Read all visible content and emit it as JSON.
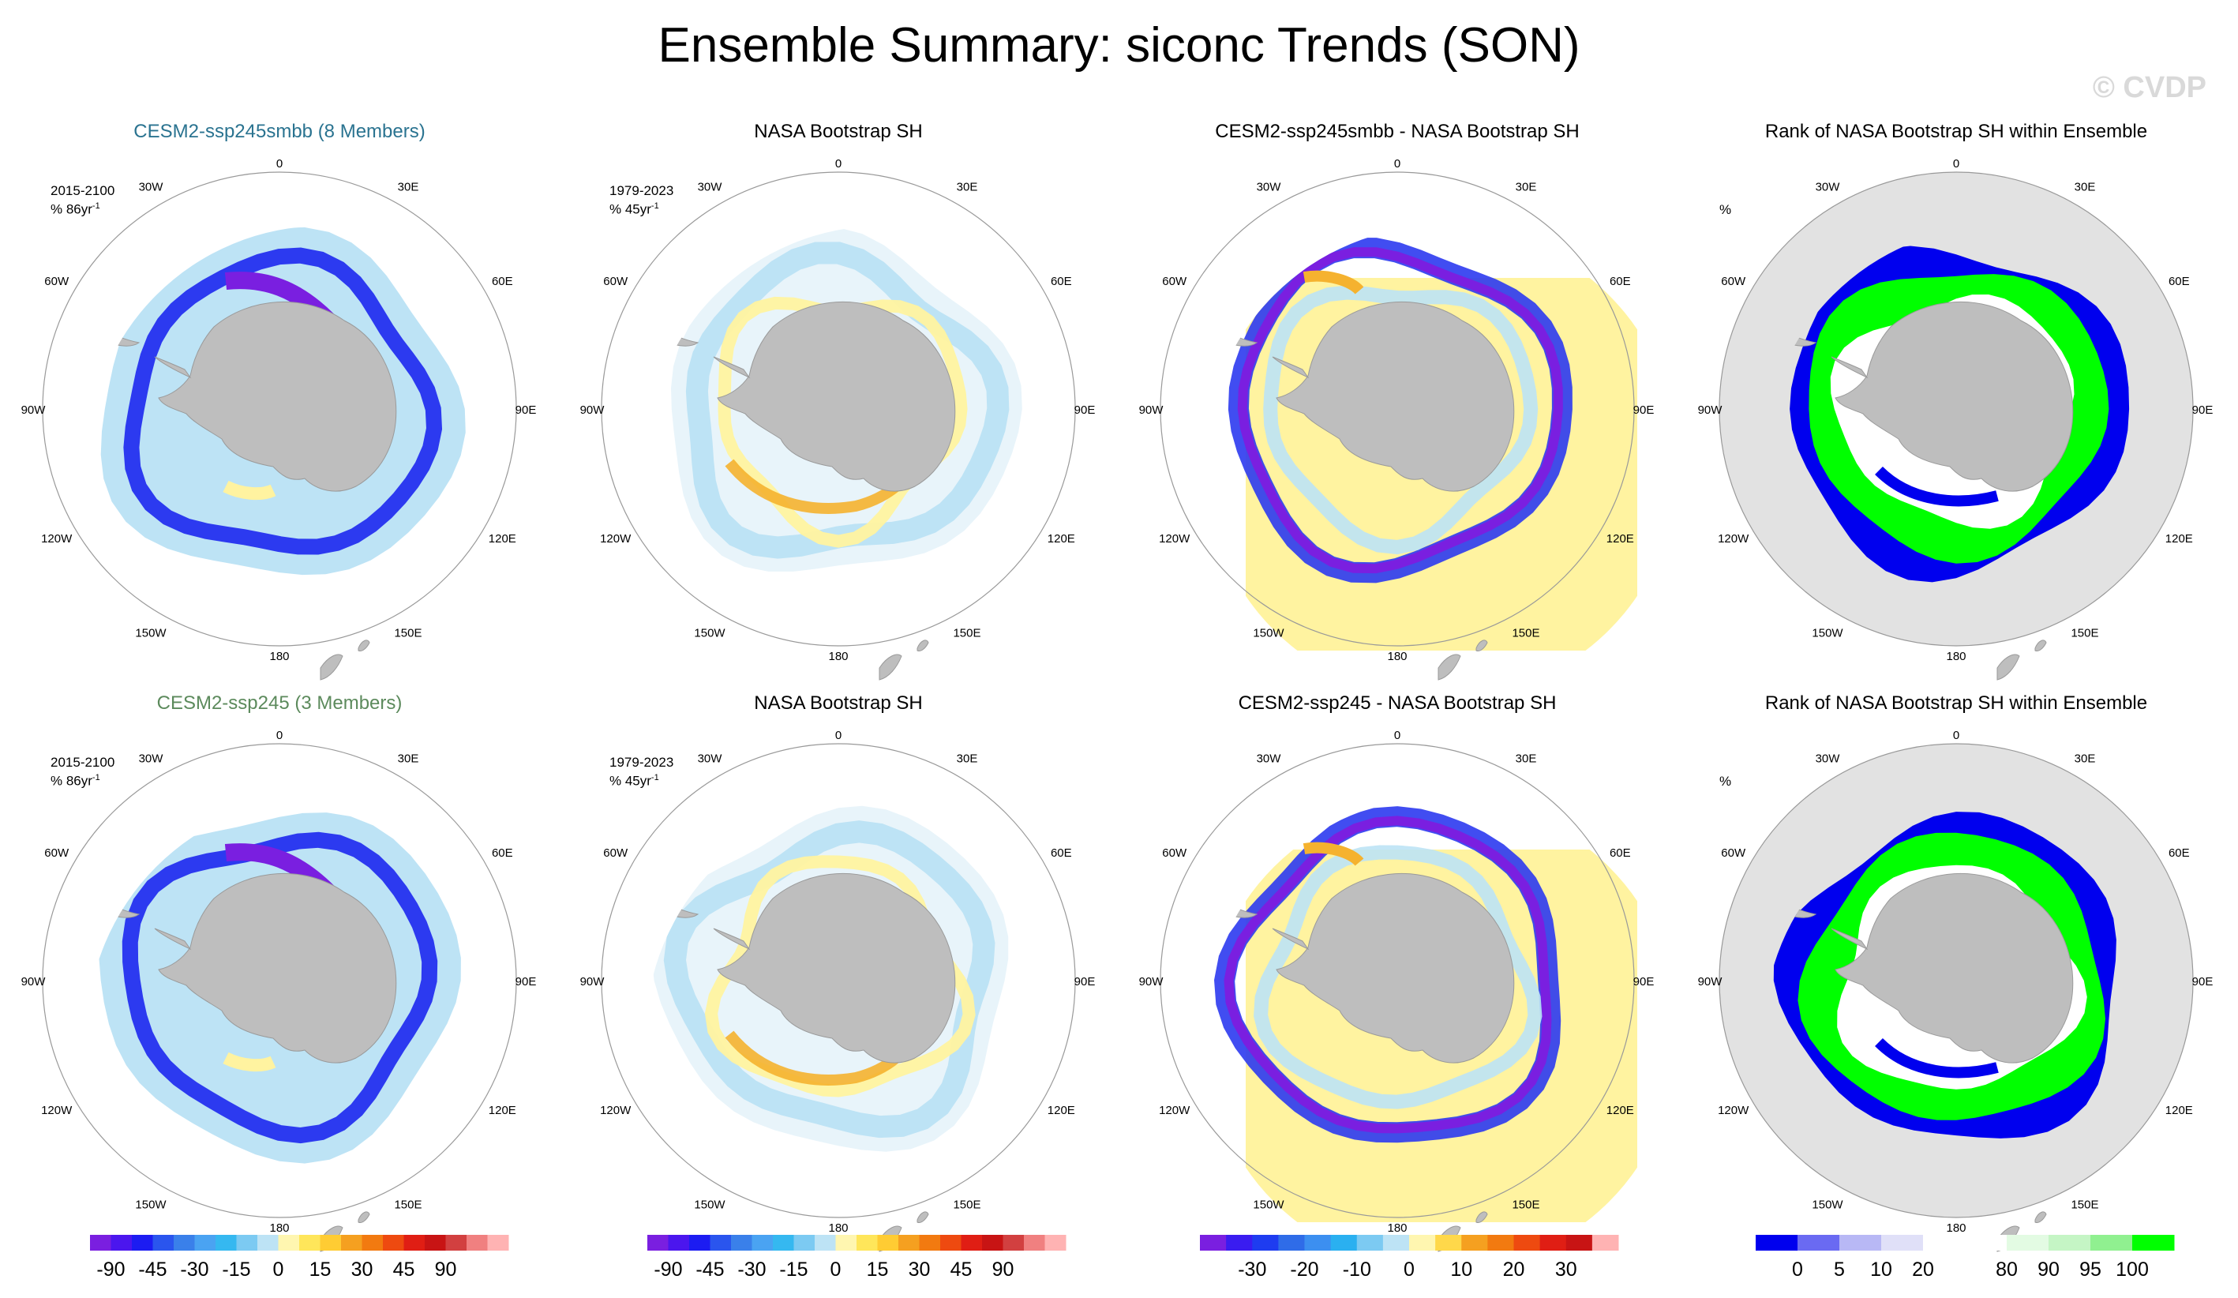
{
  "title": "Ensemble Summary: siconc Trends (SON)",
  "watermark": "© CVDP",
  "colors": {
    "model1_title": "#2a7390",
    "model2_title": "#5c8a5c",
    "land": "#bebebe",
    "ocean_rank": "#e2e2e2",
    "neg_strong": "#7a1fe0",
    "neg_mid": "#2c3af0",
    "neg_light": "#bde3f5",
    "pos_light": "#fff3a0",
    "pos_mid": "#f5b22f",
    "rank_low": "#0000ee",
    "rank_high": "#00ff00"
  },
  "map_labels": {
    "lon": [
      "0",
      "30E",
      "60E",
      "90E",
      "120E",
      "150E",
      "180",
      "150W",
      "120W",
      "90W",
      "60W",
      "30W"
    ]
  },
  "panels": [
    {
      "type": "trend",
      "title": "CESM2-ssp245smbb (8 Members)",
      "title_color": "model1",
      "period": "2015-2100",
      "units": "% 86yr",
      "units_sup": "-1",
      "variant": "model"
    },
    {
      "type": "trend",
      "title": "NASA Bootstrap SH",
      "title_color": "black",
      "period": "1979-2023",
      "units": "% 45yr",
      "units_sup": "-1",
      "variant": "obs"
    },
    {
      "type": "trend",
      "title": "CESM2-ssp245smbb - NASA Bootstrap SH",
      "title_color": "black",
      "period": "",
      "units": "",
      "units_sup": "",
      "variant": "diff"
    },
    {
      "type": "rank",
      "title": "Rank of NASA Bootstrap SH within Ensemble",
      "title_color": "black",
      "period": "",
      "units": "%",
      "units_sup": "",
      "variant": "rank"
    },
    {
      "type": "trend",
      "title": "CESM2-ssp245 (3 Members)",
      "title_color": "model2",
      "period": "2015-2100",
      "units": "% 86yr",
      "units_sup": "-1",
      "variant": "model"
    },
    {
      "type": "trend",
      "title": "NASA Bootstrap SH",
      "title_color": "black",
      "period": "1979-2023",
      "units": "% 45yr",
      "units_sup": "-1",
      "variant": "obs"
    },
    {
      "type": "trend",
      "title": "CESM2-ssp245 - NASA Bootstrap SH",
      "title_color": "black",
      "period": "",
      "units": "",
      "units_sup": "",
      "variant": "diff"
    },
    {
      "type": "rank",
      "title": "Rank of NASA Bootstrap SH within Ensemble",
      "title_color": "black",
      "period": "",
      "units": "%",
      "units_sup": "",
      "variant": "rank"
    }
  ],
  "colorbars": [
    {
      "colors": [
        "#7a1fe0",
        "#4b16ee",
        "#1c1cf2",
        "#2a55ee",
        "#3a80ea",
        "#4aa3f2",
        "#35b8f0",
        "#7ccaf2",
        "#bde3f5",
        "#fff6b0",
        "#ffe65a",
        "#ffcc33",
        "#f5a020",
        "#f27a10",
        "#ee4a10",
        "#e01e14",
        "#c81414",
        "#d24040",
        "#f08080",
        "#ffb3b3"
      ],
      "ticks": [
        "-90",
        "-45",
        "-30",
        "-15",
        "0",
        "15",
        "30",
        "45",
        "90"
      ],
      "tick_positions": [
        1,
        3,
        5,
        7,
        9,
        11,
        13,
        15,
        17
      ]
    },
    {
      "colors": [
        "#7a1fe0",
        "#4b16ee",
        "#1c1cf2",
        "#2a55ee",
        "#3a80ea",
        "#4aa3f2",
        "#35b8f0",
        "#7ccaf2",
        "#bde3f5",
        "#fff6b0",
        "#ffe65a",
        "#ffcc33",
        "#f5a020",
        "#f27a10",
        "#ee4a10",
        "#e01e14",
        "#c81414",
        "#d24040",
        "#f08080",
        "#ffb3b3"
      ],
      "ticks": [
        "-90",
        "-45",
        "-30",
        "-15",
        "0",
        "15",
        "30",
        "45",
        "90"
      ],
      "tick_positions": [
        1,
        3,
        5,
        7,
        9,
        11,
        13,
        15,
        17
      ]
    },
    {
      "colors": [
        "#7a1fe0",
        "#3a1cf0",
        "#1e3cf0",
        "#2f6ce8",
        "#3c8ff0",
        "#2ab0f0",
        "#7ccaf2",
        "#bde3f5",
        "#fff6b0",
        "#ffd84a",
        "#f5a020",
        "#f27a10",
        "#ee4a10",
        "#e01e14",
        "#c81414",
        "#ffb3b3"
      ],
      "ticks": [
        "-30",
        "-20",
        "-10",
        "0",
        "10",
        "20",
        "30"
      ],
      "tick_positions": [
        2,
        4,
        6,
        8,
        10,
        12,
        14
      ]
    },
    {
      "colors": [
        "#0000ee",
        "#6a6af2",
        "#b8b8f5",
        "#e0e0f8",
        "#ffffff",
        "#ffffff",
        "#e3fbe3",
        "#c5f5c5",
        "#90f090",
        "#00ff00"
      ],
      "ticks": [
        "0",
        "5",
        "10",
        "20",
        "80",
        "90",
        "95",
        "100"
      ],
      "tick_positions": [
        1,
        2,
        3,
        4,
        6,
        7,
        8,
        9
      ]
    }
  ]
}
